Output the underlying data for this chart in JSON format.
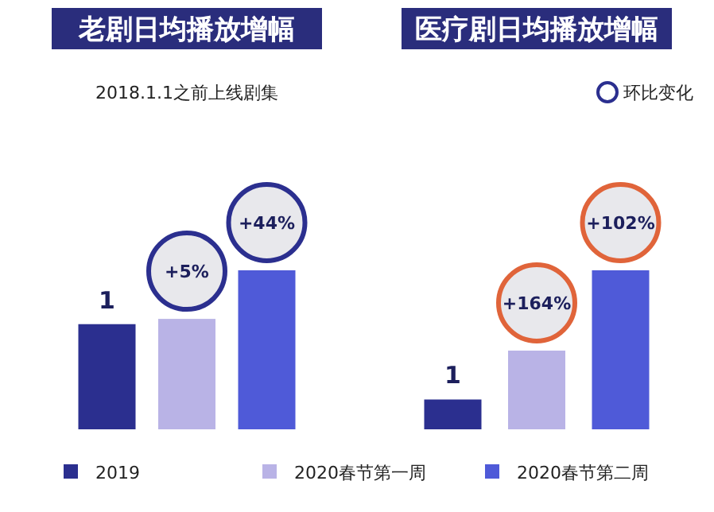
{
  "chart_data": [
    {
      "type": "bar",
      "title": "老剧日均播放增幅",
      "subtitle": "2018.1.1之前上线剧集",
      "categories": [
        null
      ],
      "legend": "bottom",
      "annotations": [
        "+5%",
        "+44%"
      ],
      "series": [
        {
          "name": "2019",
          "color": "#2b2f8f",
          "values": [
            1
          ],
          "value_labels": [
            "1"
          ]
        },
        {
          "name": "2020春节第一周",
          "color": "#b9b3e6",
          "values": [
            1.05
          ]
        },
        {
          "name": "2020春节第二周",
          "color": "#4f5ad8",
          "values": [
            1.512
          ]
        }
      ]
    },
    {
      "type": "bar",
      "title": "医疗剧日均播放增幅",
      "annotations": [
        "+164%",
        "+102%",
        "环比变化"
      ],
      "categories": [
        null
      ],
      "series": [
        {
          "color": "#2b2f8f",
          "values": [
            1
          ],
          "value_labels": [
            "1"
          ]
        },
        {
          "color": "#b9b3e6",
          "values": [
            2.64
          ]
        },
        {
          "color": "#4f5ad8",
          "values": [
            5.333
          ]
        }
      ]
    }
  ]
}
